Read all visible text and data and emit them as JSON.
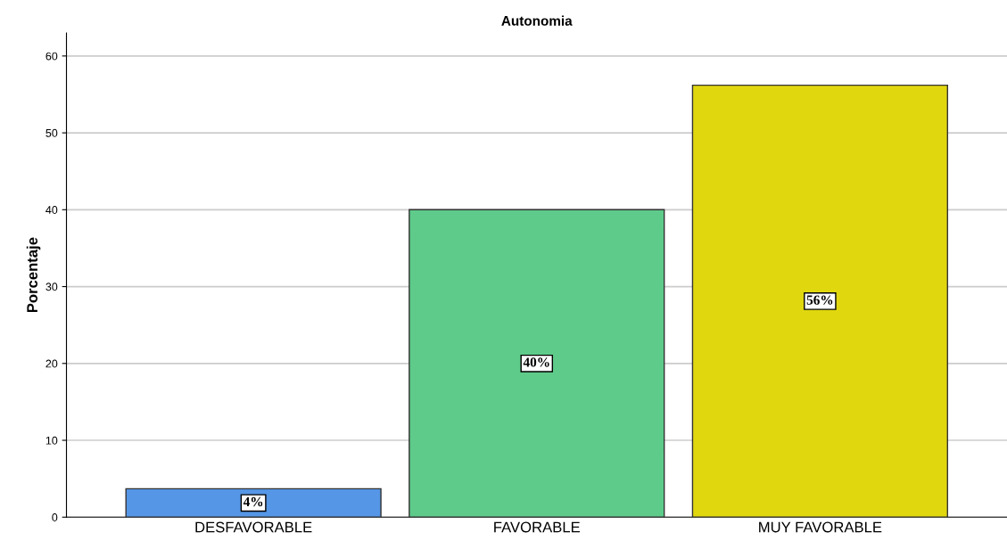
{
  "chart_data": {
    "type": "bar",
    "title": "Autonomia",
    "ylabel": "Porcentaje",
    "categories": [
      "DESFAVORABLE",
      "FAVORABLE",
      "MUY FAVORABLE"
    ],
    "values": [
      3.7,
      40,
      56.2
    ],
    "value_labels": [
      "4%",
      "40%",
      "56%"
    ],
    "colors": [
      "#5596e6",
      "#5ecb8a",
      "#e1d70f"
    ],
    "ylim": [
      0,
      63
    ],
    "yticks": [
      0,
      10,
      20,
      30,
      40,
      50,
      60
    ],
    "grid": "y"
  }
}
